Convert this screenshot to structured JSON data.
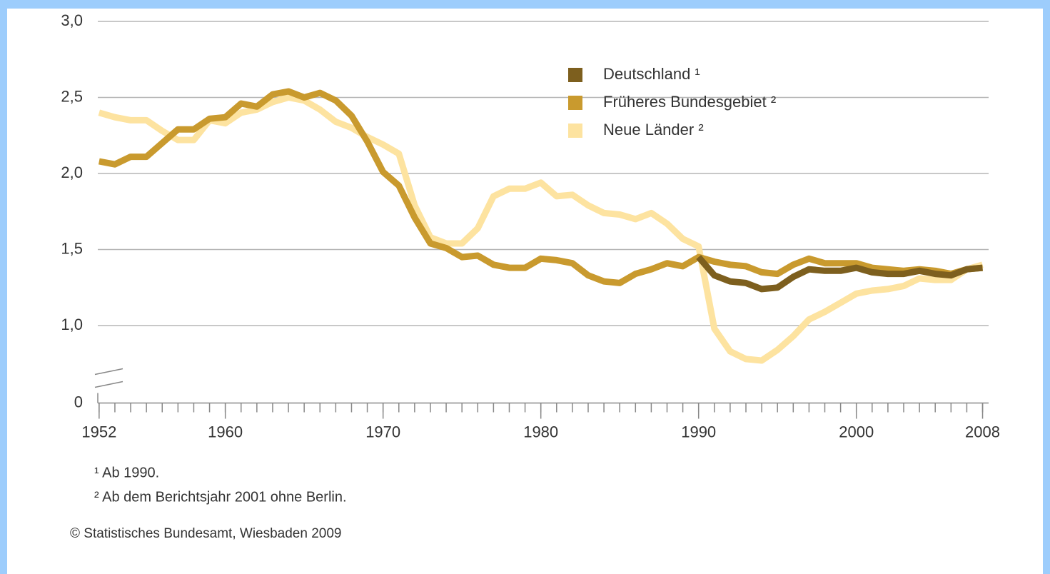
{
  "chart_data": {
    "type": "line",
    "x": [
      1952,
      1953,
      1954,
      1955,
      1956,
      1957,
      1958,
      1959,
      1960,
      1961,
      1962,
      1963,
      1964,
      1965,
      1966,
      1967,
      1968,
      1969,
      1970,
      1971,
      1972,
      1973,
      1974,
      1975,
      1976,
      1977,
      1978,
      1979,
      1980,
      1981,
      1982,
      1983,
      1984,
      1985,
      1986,
      1987,
      1988,
      1989,
      1990,
      1991,
      1992,
      1993,
      1994,
      1995,
      1996,
      1997,
      1998,
      1999,
      2000,
      2001,
      2002,
      2003,
      2004,
      2005,
      2006,
      2007,
      2008
    ],
    "series": [
      {
        "name": "Neue Länder ²",
        "color": "#fde3a0",
        "values": [
          2.4,
          2.37,
          2.35,
          2.35,
          2.28,
          2.22,
          2.22,
          2.35,
          2.33,
          2.4,
          2.42,
          2.47,
          2.5,
          2.48,
          2.42,
          2.34,
          2.3,
          2.24,
          2.19,
          2.13,
          1.79,
          1.58,
          1.54,
          1.54,
          1.64,
          1.85,
          1.9,
          1.9,
          1.94,
          1.85,
          1.86,
          1.79,
          1.74,
          1.73,
          1.7,
          1.74,
          1.67,
          1.57,
          1.52,
          0.98,
          0.83,
          0.78,
          0.77,
          0.84,
          0.93,
          1.04,
          1.09,
          1.15,
          1.21,
          1.23,
          1.24,
          1.26,
          1.31,
          1.3,
          1.3,
          1.37,
          1.4
        ]
      },
      {
        "name": "Früheres Bundesgebiet ²",
        "color": "#c99a2e",
        "values": [
          2.08,
          2.06,
          2.11,
          2.11,
          2.2,
          2.29,
          2.29,
          2.36,
          2.37,
          2.46,
          2.44,
          2.52,
          2.54,
          2.5,
          2.53,
          2.48,
          2.38,
          2.21,
          2.01,
          1.92,
          1.71,
          1.54,
          1.51,
          1.45,
          1.46,
          1.4,
          1.38,
          1.38,
          1.44,
          1.43,
          1.41,
          1.33,
          1.29,
          1.28,
          1.34,
          1.37,
          1.41,
          1.39,
          1.45,
          1.42,
          1.4,
          1.39,
          1.35,
          1.34,
          1.4,
          1.44,
          1.41,
          1.41,
          1.41,
          1.38,
          1.37,
          1.36,
          1.37,
          1.36,
          1.34,
          1.37,
          1.38
        ]
      },
      {
        "name": "Deutschland ¹",
        "color": "#7d5f1e",
        "values": [
          null,
          null,
          null,
          null,
          null,
          null,
          null,
          null,
          null,
          null,
          null,
          null,
          null,
          null,
          null,
          null,
          null,
          null,
          null,
          null,
          null,
          null,
          null,
          null,
          null,
          null,
          null,
          null,
          null,
          null,
          null,
          null,
          null,
          null,
          null,
          null,
          null,
          null,
          1.45,
          1.33,
          1.29,
          1.28,
          1.24,
          1.25,
          1.32,
          1.37,
          1.36,
          1.36,
          1.38,
          1.35,
          1.34,
          1.34,
          1.36,
          1.34,
          1.33,
          1.37,
          1.38
        ]
      }
    ],
    "legend_order": [
      2,
      1,
      0
    ],
    "xlim": [
      1951.6,
      2008.7
    ],
    "xticks": [
      1952,
      1960,
      1970,
      1980,
      1990,
      2000,
      2008
    ],
    "xminorticks": [
      1952,
      1953,
      1954,
      1955,
      1956,
      1957,
      1958,
      1959,
      1960,
      1961,
      1962,
      1963,
      1964,
      1965,
      1966,
      1967,
      1968,
      1969,
      1970,
      1971,
      1972,
      1973,
      1974,
      1975,
      1976,
      1977,
      1978,
      1979,
      1980,
      1981,
      1982,
      1983,
      1984,
      1985,
      1986,
      1987,
      1988,
      1989,
      1990,
      1991,
      1992,
      1993,
      1994,
      1995,
      1996,
      1997,
      1998,
      1999,
      2000,
      2001,
      2002,
      2003,
      2004,
      2005,
      2006,
      2007,
      2008
    ],
    "ylim": [
      0,
      3
    ],
    "y_break": [
      0,
      0.5
    ],
    "yticks": [
      0,
      {
        "value": 1,
        "label": "1,0"
      },
      {
        "value": 1.5,
        "label": "1,5"
      },
      {
        "value": 2,
        "label": "2,0"
      },
      {
        "value": 2.5,
        "label": "2,5"
      },
      {
        "value": 3,
        "label": "3,0"
      }
    ],
    "grid": true,
    "legend": "upper center",
    "footnotes": [
      "¹ Ab 1990.",
      "² Ab dem Berichtsjahr 2001 ohne Berlin."
    ],
    "source": "© Statistisches Bundesamt, Wiesbaden 2009"
  }
}
